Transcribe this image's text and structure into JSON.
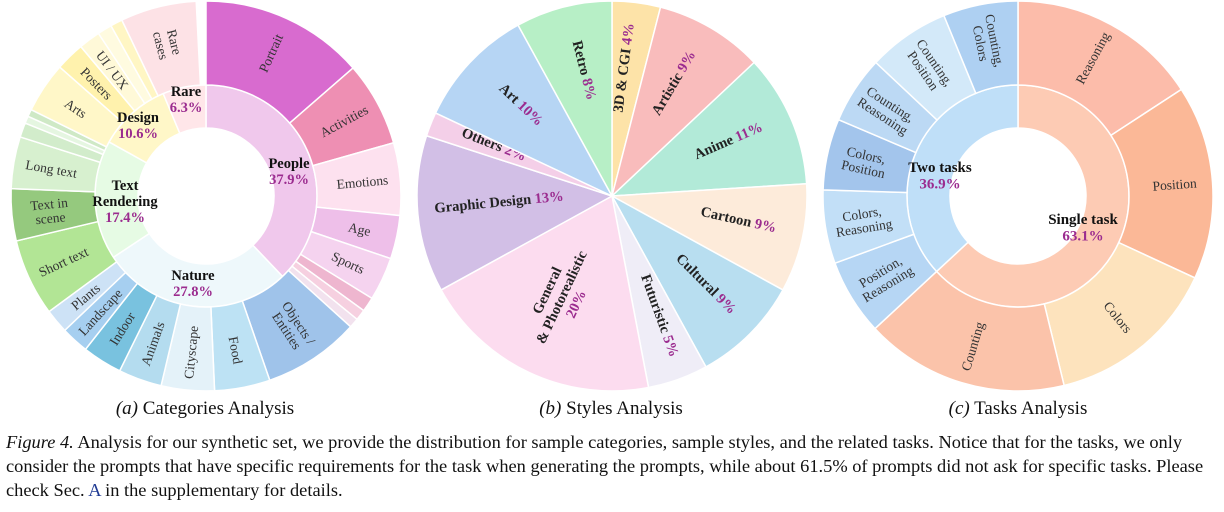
{
  "chart_data": [
    {
      "type": "pie",
      "style": "sunburst",
      "caption_letter": "(a)",
      "caption_text": "Categories Analysis",
      "inner": [
        {
          "label": "People",
          "value": "37.9%",
          "share": 37.9,
          "color": "#f0c8ec"
        },
        {
          "label": "Nature",
          "value": "27.8%",
          "share": 27.8,
          "color": "#eef8fb"
        },
        {
          "label": "Text\nRendering",
          "value": "17.4%",
          "share": 17.4,
          "color": "#e6fbe4"
        },
        {
          "label": "Design",
          "value": "10.6%",
          "share": 10.6,
          "color": "#fff7c8"
        },
        {
          "label": "Rare",
          "value": "6.3%",
          "share": 6.3,
          "color": "#ffe6e9"
        }
      ],
      "outer": [
        {
          "label": "Portrait",
          "share": 13.6,
          "color": "#d86bcf"
        },
        {
          "label": "Activities",
          "share": 7.0,
          "color": "#ee8fb3"
        },
        {
          "label": "Emotions",
          "share": 6.0,
          "color": "#fde1ef"
        },
        {
          "label": "Age",
          "share": 3.6,
          "color": "#eebfe9"
        },
        {
          "label": "Sports",
          "share": 3.6,
          "color": "#f5d3ef"
        },
        {
          "label": "",
          "share": 1.2,
          "color": "#eeb6cf"
        },
        {
          "label": "",
          "share": 0.9,
          "color": "#f6d0e0"
        },
        {
          "label": "",
          "share": 0.8,
          "color": "#f2e2ee"
        },
        {
          "label": "Objects / Entities",
          "share": 8.0,
          "color": "#9fc3ea"
        },
        {
          "label": "Food",
          "share": 4.6,
          "color": "#bde2f4"
        },
        {
          "label": "Cityscape",
          "share": 4.4,
          "color": "#e4f2f9"
        },
        {
          "label": "Animals",
          "share": 3.6,
          "color": "#b4dcef"
        },
        {
          "label": "Indoor",
          "share": 3.3,
          "color": "#79c2df"
        },
        {
          "label": "Landscape",
          "share": 2.3,
          "color": "#a6cff0"
        },
        {
          "label": "Plants",
          "share": 2.0,
          "color": "#cde2f6"
        },
        {
          "label": "Short text",
          "share": 6.4,
          "color": "#b2e595"
        },
        {
          "label": "Text in scene",
          "share": 4.3,
          "color": "#95c97e"
        },
        {
          "label": "Long text",
          "share": 4.3,
          "color": "#d7f0cf"
        },
        {
          "label": "",
          "share": 1.2,
          "color": "#d2eccb"
        },
        {
          "label": "",
          "share": 0.6,
          "color": "#e5f6e1"
        },
        {
          "label": "",
          "share": 0.6,
          "color": "#cfe9c6"
        },
        {
          "label": "Arts",
          "share": 4.2,
          "color": "#fff7c8"
        },
        {
          "label": "Posters",
          "share": 2.4,
          "color": "#fff2ad"
        },
        {
          "label": "UI / UX",
          "share": 1.8,
          "color": "#fff9d8"
        },
        {
          "label": "",
          "share": 1.2,
          "color": "#fffbe0"
        },
        {
          "label": "",
          "share": 1.0,
          "color": "#fff6c4"
        },
        {
          "label": "Rare cases",
          "share": 6.3,
          "color": "#fde2e6"
        }
      ]
    },
    {
      "type": "pie",
      "caption_letter": "(b)",
      "caption_text": "Styles Analysis",
      "slices": [
        {
          "label": "3D & CGI",
          "value": "4%",
          "share": 4,
          "color": "#fde3a8"
        },
        {
          "label": "Artistic",
          "value": "9%",
          "share": 9,
          "color": "#f9bcbc"
        },
        {
          "label": "Anime",
          "value": "11%",
          "share": 11,
          "color": "#b2ead8"
        },
        {
          "label": "Cartoon",
          "value": "9%",
          "share": 9,
          "color": "#fdebda"
        },
        {
          "label": "Cultural",
          "value": "9%",
          "share": 9,
          "color": "#b8def0"
        },
        {
          "label": "Futuristic",
          "value": "5%",
          "share": 5,
          "color": "#efedf7"
        },
        {
          "label": "General\n& Photorealistic",
          "value": "20%",
          "share": 20,
          "color": "#fcdcef"
        },
        {
          "label": "Graphic Design",
          "value": "13%",
          "share": 13,
          "color": "#d2bfe6"
        },
        {
          "label": "Others",
          "value": "2%",
          "share": 2,
          "color": "#f4cfe8"
        },
        {
          "label": "Art",
          "value": "10%",
          "share": 10,
          "color": "#b6d5f4"
        },
        {
          "label": "Retro",
          "value": "8%",
          "share": 8,
          "color": "#b7efc6"
        }
      ]
    },
    {
      "type": "pie",
      "style": "sunburst",
      "caption_letter": "(c)",
      "caption_text": "Tasks Analysis",
      "inner": [
        {
          "label": "Single task",
          "value": "63.1%",
          "share": 63.1,
          "color": "#fdcbb4"
        },
        {
          "label": "Two tasks",
          "value": "36.9%",
          "share": 36.9,
          "color": "#bfdff8"
        }
      ],
      "outer": [
        {
          "label": "Reasoning",
          "share": 15.8,
          "color": "#fcbcaa"
        },
        {
          "label": "Position",
          "share": 16.1,
          "color": "#fbb897"
        },
        {
          "label": "Colors",
          "share": 14.3,
          "color": "#fde3bd"
        },
        {
          "label": "Counting",
          "share": 16.9,
          "color": "#fbc3aa"
        },
        {
          "label": "Position,\nReasoning",
          "share": 6.3,
          "color": "#b6d6f4"
        },
        {
          "label": "Colors,\nReasoning",
          "share": 6.1,
          "color": "#c2dff7"
        },
        {
          "label": "Colors,\nPosition",
          "share": 5.9,
          "color": "#a3c5ec"
        },
        {
          "label": "Counting,\nReasoning",
          "share": 5.6,
          "color": "#bcd9f4"
        },
        {
          "label": "Counting,\nPosition",
          "share": 6.8,
          "color": "#d3e9f9"
        },
        {
          "label": "Counting,\nColors",
          "share": 6.2,
          "color": "#aed0f2"
        }
      ]
    }
  ],
  "caption": {
    "label": "Figure 4.",
    "text_before_ref": "Analysis for our synthetic set, we provide the distribution for sample categories, sample styles, and the related tasks. Notice that for the tasks, we only consider the prompts that have specific requirements for the task when generating the prompts, while about 61.5% of prompts did not ask for specific tasks. Please check Sec. ",
    "ref": "A",
    "text_after_ref": " in the supplementary for details."
  }
}
